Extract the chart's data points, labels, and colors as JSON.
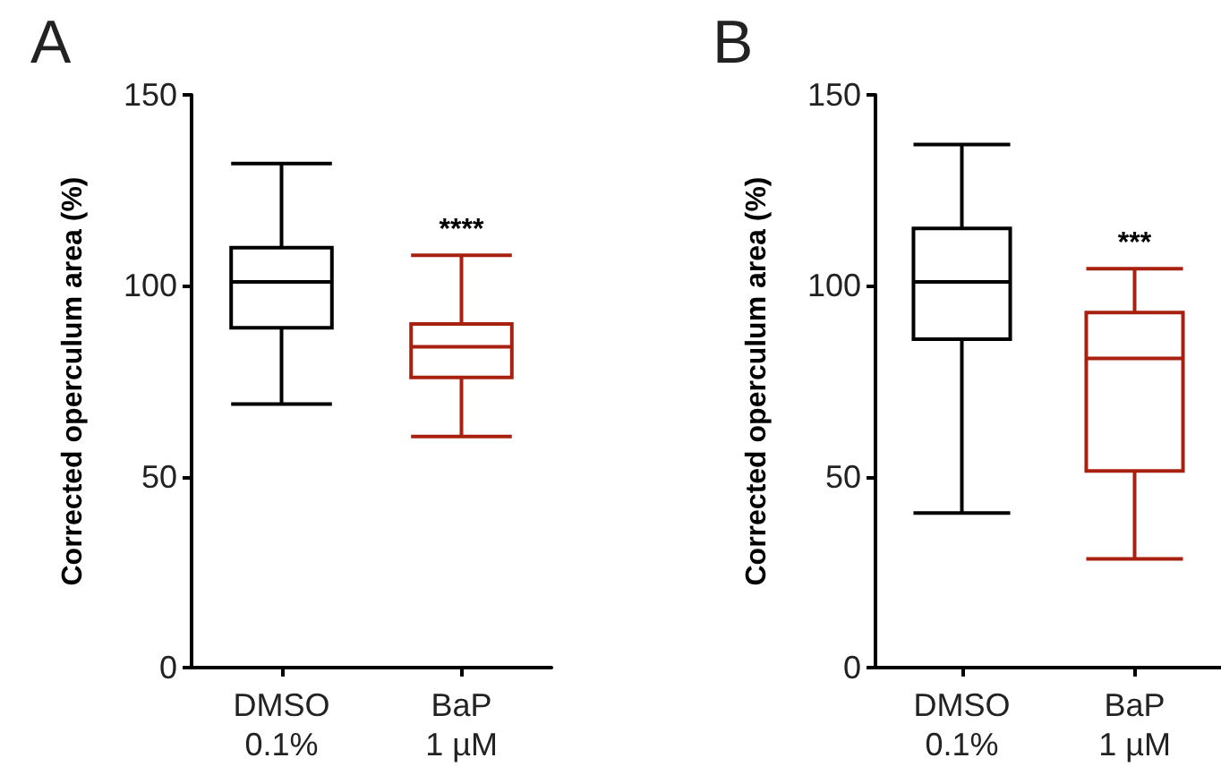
{
  "chart_data": [
    {
      "type": "box",
      "title": "A",
      "ylabel": "Corrected operculum area (%)",
      "categories": [
        "DMSO\n0.1%",
        "BaP\n1 µM"
      ],
      "colors": [
        "#000000",
        "#a8200f"
      ],
      "boxes": [
        {
          "low": 69,
          "q1": 89,
          "median": 101,
          "q3": 110,
          "high": 132
        },
        {
          "low": 60.5,
          "q1": 76,
          "median": 84,
          "q3": 90,
          "high": 108
        }
      ],
      "ylim": [
        0,
        150
      ],
      "yticks": [
        0,
        50,
        100,
        150
      ],
      "grid": false,
      "annotations": [
        {
          "text": "****",
          "x": "BaP\n1 µM",
          "y": 108
        }
      ]
    },
    {
      "type": "box",
      "title": "B",
      "ylabel": "Corrected operculum area (%)",
      "categories": [
        "DMSO\n0.1%",
        "BaP\n1 µM"
      ],
      "colors": [
        "#000000",
        "#a8200f"
      ],
      "boxes": [
        {
          "low": 40.5,
          "q1": 86,
          "median": 101,
          "q3": 115,
          "high": 137
        },
        {
          "low": 28.5,
          "q1": 51.5,
          "median": 81,
          "q3": 93,
          "high": 104.5
        }
      ],
      "ylim": [
        0,
        150
      ],
      "yticks": [
        0,
        50,
        100,
        150
      ],
      "grid": false,
      "annotations": [
        {
          "text": "***",
          "x": "BaP\n1 µM",
          "y": 104.5
        }
      ]
    }
  ]
}
